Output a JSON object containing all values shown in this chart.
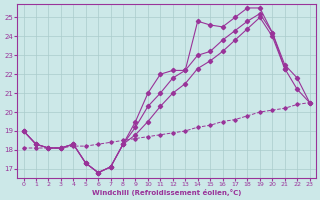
{
  "bg_color": "#cce8e8",
  "grid_color": "#aacccc",
  "line_color": "#993399",
  "xlabel": "Windchill (Refroidissement éolien,°C)",
  "xlim": [
    -0.5,
    23.5
  ],
  "ylim": [
    16.5,
    25.7
  ],
  "yticks": [
    17,
    18,
    19,
    20,
    21,
    22,
    23,
    24,
    25
  ],
  "xticks": [
    0,
    1,
    2,
    3,
    4,
    5,
    6,
    7,
    8,
    9,
    10,
    11,
    12,
    13,
    14,
    15,
    16,
    17,
    18,
    19,
    20,
    21,
    22,
    23
  ],
  "series": [
    {
      "x": [
        0,
        1,
        2,
        3,
        4,
        5,
        6,
        7,
        8,
        9,
        10,
        11,
        12,
        13,
        14,
        15,
        16,
        17,
        18,
        19,
        20,
        21
      ],
      "y": [
        19.0,
        18.3,
        18.1,
        18.1,
        18.3,
        17.3,
        16.8,
        17.1,
        18.3,
        19.5,
        21.0,
        22.0,
        22.2,
        22.2,
        24.8,
        24.6,
        24.5,
        25.0,
        25.5,
        25.5,
        24.2,
        22.3
      ],
      "dashed": false
    },
    {
      "x": [
        0,
        1,
        2,
        3,
        4,
        5,
        6,
        7,
        8,
        9,
        10,
        11,
        12,
        13,
        14,
        15,
        16,
        17,
        18,
        19,
        20,
        21,
        22,
        23
      ],
      "y": [
        19.0,
        18.3,
        18.1,
        18.1,
        18.3,
        17.3,
        16.8,
        17.1,
        18.3,
        19.2,
        20.3,
        21.0,
        21.8,
        22.2,
        23.0,
        23.2,
        23.8,
        24.3,
        24.8,
        25.2,
        24.2,
        22.5,
        21.8,
        20.5
      ],
      "dashed": false
    },
    {
      "x": [
        0,
        1,
        2,
        3,
        4,
        5,
        6,
        7,
        8,
        9,
        10,
        11,
        12,
        13,
        14,
        15,
        16,
        17,
        18,
        19,
        20,
        21,
        22,
        23
      ],
      "y": [
        19.0,
        18.3,
        18.1,
        18.1,
        18.3,
        17.3,
        16.8,
        17.1,
        18.3,
        18.8,
        19.5,
        20.3,
        21.0,
        21.5,
        22.3,
        22.7,
        23.2,
        23.8,
        24.4,
        25.0,
        24.0,
        22.3,
        21.2,
        20.5
      ],
      "dashed": false
    },
    {
      "x": [
        0,
        1,
        2,
        3,
        4,
        5,
        6,
        7,
        8,
        9,
        10,
        11,
        12,
        13,
        14,
        15,
        16,
        17,
        18,
        19,
        20,
        21,
        22,
        23
      ],
      "y": [
        18.1,
        18.1,
        18.1,
        18.1,
        18.2,
        18.2,
        18.3,
        18.4,
        18.5,
        18.6,
        18.7,
        18.8,
        18.9,
        19.0,
        19.2,
        19.3,
        19.5,
        19.6,
        19.8,
        20.0,
        20.1,
        20.2,
        20.4,
        20.5
      ],
      "dashed": true
    }
  ]
}
